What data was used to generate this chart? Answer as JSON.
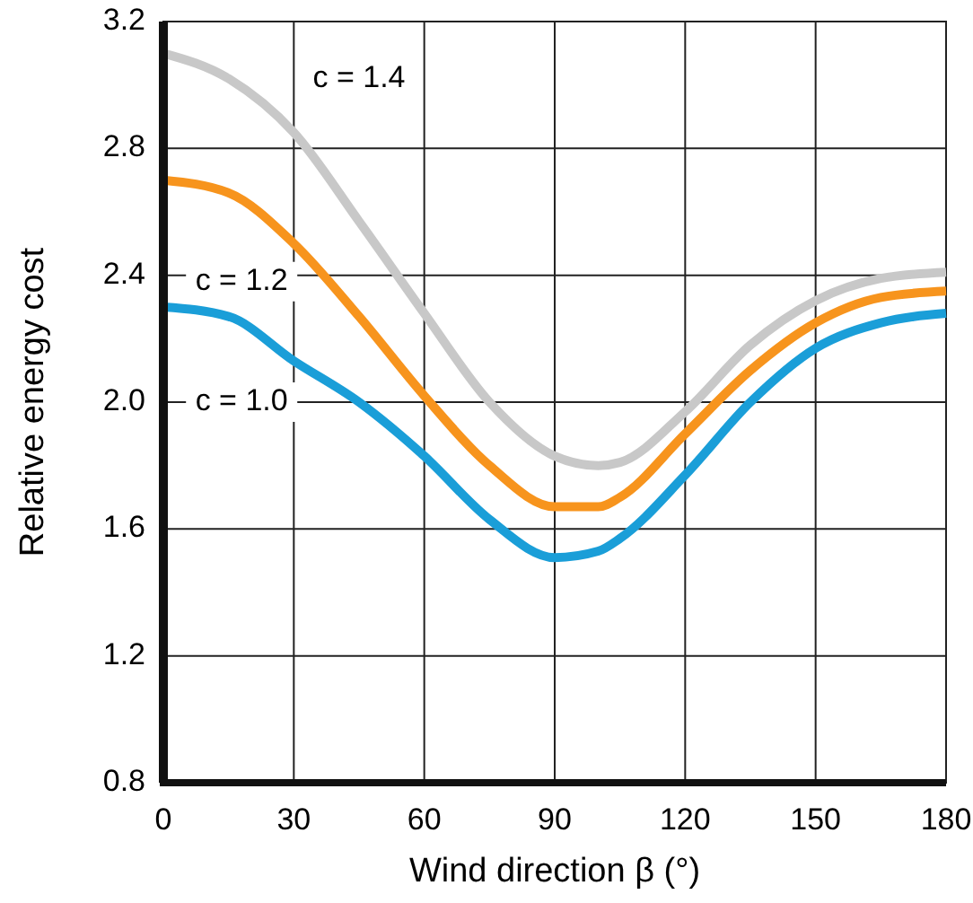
{
  "chart_data": {
    "type": "line",
    "xlabel": "Wind direction β (°)",
    "ylabel": "Relative energy cost",
    "xlim": [
      0,
      180
    ],
    "xticks": [
      0,
      30,
      60,
      90,
      120,
      150,
      180
    ],
    "ylim": [
      0.8,
      3.2
    ],
    "yticks": [
      0.8,
      1.2,
      1.6,
      {
        "value": 2,
        "label": "2.0"
      },
      2.4,
      2.8,
      3.2
    ],
    "grid": true,
    "marker": "none",
    "line_style": "solid",
    "x": [
      0,
      15,
      30,
      45,
      60,
      75,
      90,
      100,
      105,
      120,
      135,
      150,
      165,
      180
    ],
    "series": [
      {
        "name": "c = 1.4",
        "color": "#c8c8c8",
        "values": [
          3.1,
          3.02,
          2.85,
          2.57,
          2.28,
          2.0,
          1.83,
          1.8,
          1.81,
          1.97,
          2.18,
          2.32,
          2.39,
          2.41
        ]
      },
      {
        "name": "c = 1.2",
        "color": "#f7941d",
        "values": [
          2.7,
          2.66,
          2.5,
          2.27,
          2.02,
          1.8,
          1.67,
          1.67,
          1.7,
          1.9,
          2.1,
          2.25,
          2.33,
          2.35
        ]
      },
      {
        "name": "c = 1.0",
        "color": "#1a9ed8",
        "values": [
          2.3,
          2.27,
          2.13,
          2.0,
          1.83,
          1.63,
          1.51,
          1.53,
          1.57,
          1.77,
          2.0,
          2.17,
          2.25,
          2.28
        ]
      }
    ]
  }
}
